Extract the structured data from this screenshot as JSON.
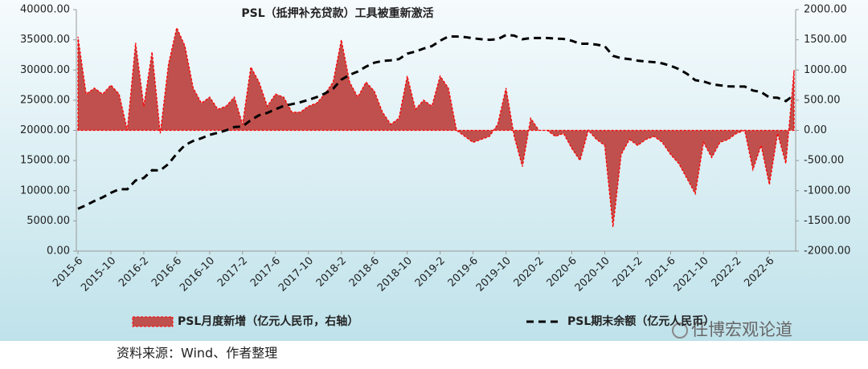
{
  "chart_data": {
    "type": "combo",
    "title": "PSL（抵押补充贷款）工具被重新激活",
    "source": "资料来源：Wind、作者整理",
    "watermark": "任博宏观论道",
    "categories": [
      "2015-6",
      null,
      null,
      null,
      "2015-10",
      null,
      null,
      null,
      "2016-2",
      null,
      null,
      null,
      "2016-6",
      null,
      null,
      null,
      "2016-10",
      null,
      null,
      null,
      "2017-2",
      null,
      null,
      null,
      "2017-6",
      null,
      null,
      null,
      "2017-10",
      null,
      null,
      null,
      "2018-2",
      null,
      null,
      null,
      "2018-6",
      null,
      null,
      null,
      "2018-10",
      null,
      null,
      null,
      "2019-2",
      null,
      null,
      null,
      "2019-6",
      null,
      null,
      null,
      "2019-10",
      null,
      null,
      null,
      "2020-2",
      null,
      null,
      null,
      "2020-6",
      null,
      null,
      null,
      "2020-10",
      null,
      null,
      null,
      "2021-2",
      null,
      null,
      null,
      "2021-6",
      null,
      null,
      null,
      "2021-10",
      null,
      null,
      null,
      "2022-2",
      null,
      null,
      null,
      "2022-6",
      null,
      null,
      null
    ],
    "series": [
      {
        "name": "PSL月度新增（亿元人民币，右轴）",
        "type": "area",
        "axis": "y2",
        "color": "#c0504d",
        "edge_color": "#ff0000",
        "values": [
          1550,
          600,
          700,
          600,
          750,
          600,
          0,
          1450,
          400,
          1300,
          -50,
          1100,
          1700,
          1400,
          700,
          450,
          550,
          350,
          400,
          550,
          100,
          1050,
          800,
          400,
          600,
          550,
          300,
          300,
          400,
          450,
          600,
          800,
          1500,
          800,
          550,
          800,
          650,
          300,
          100,
          200,
          900,
          350,
          500,
          400,
          900,
          700,
          0,
          -100,
          -200,
          -150,
          -100,
          100,
          700,
          -100,
          -600,
          200,
          0,
          0,
          -100,
          -50,
          -300,
          -500,
          0,
          -150,
          -250,
          -1600,
          -400,
          -150,
          -250,
          -150,
          -100,
          -200,
          -400,
          -550,
          -800,
          -1050,
          -200,
          -450,
          -200,
          -150,
          -50,
          0,
          -650,
          -250,
          -900,
          -50,
          -550,
          1000
        ]
      },
      {
        "name": "PSL期末余额（亿元人民币）",
        "type": "line",
        "color": "#000000",
        "values": [
          7000,
          7600,
          8300,
          8900,
          9650,
          10250,
          10250,
          11700,
          12100,
          13400,
          13350,
          14450,
          16150,
          17550,
          18250,
          18700,
          19250,
          19600,
          20000,
          20550,
          20650,
          21700,
          22500,
          22900,
          23500,
          24050,
          24350,
          24650,
          25050,
          25500,
          26100,
          26900,
          28400,
          29200,
          29750,
          30550,
          31200,
          31500,
          31600,
          31800,
          32700,
          33050,
          33550,
          33950,
          34850,
          35550,
          35550,
          35450,
          35250,
          35100,
          35000,
          35100,
          35800,
          35700,
          35100,
          35300,
          35300,
          35300,
          35200,
          35150,
          34850,
          34350,
          34350,
          34200,
          33950,
          32350,
          31950,
          31800,
          31550,
          31400,
          31300,
          31100,
          30700,
          30150,
          29350,
          28300,
          28100,
          27650,
          27450,
          27300,
          27250,
          27250,
          26600,
          26350,
          25450,
          25400,
          24850,
          25850
        ]
      }
    ],
    "ylim": [
      0,
      40000
    ],
    "yticks": [
      {
        "value": 0,
        "label": "0.00"
      },
      {
        "value": 5000,
        "label": "5000.00"
      },
      {
        "value": 10000,
        "label": "10000.00"
      },
      {
        "value": 15000,
        "label": "15000.00"
      },
      {
        "value": 20000,
        "label": "20000.00"
      },
      {
        "value": 25000,
        "label": "25000.00"
      },
      {
        "value": 30000,
        "label": "30000.00"
      },
      {
        "value": 35000,
        "label": "35000.00"
      },
      {
        "value": 40000,
        "label": "40000.00"
      }
    ],
    "y2lim": [
      -2000,
      2000
    ],
    "y2ticks": [
      {
        "value": -2000,
        "label": "-2000.00"
      },
      {
        "value": -1500,
        "label": "-1500.00"
      },
      {
        "value": -1000,
        "label": "-1000.00"
      },
      {
        "value": -500,
        "label": "-500.00"
      },
      {
        "value": 0,
        "label": "0.00"
      },
      {
        "value": 500,
        "label": "500.00"
      },
      {
        "value": 1000,
        "label": "1000.00"
      },
      {
        "value": 1500,
        "label": "1500.00"
      },
      {
        "value": 2000,
        "label": "2000.00"
      }
    ]
  }
}
